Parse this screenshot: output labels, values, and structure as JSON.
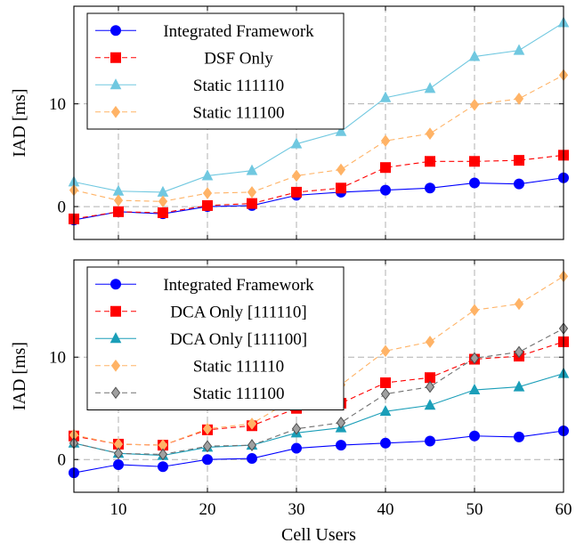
{
  "chart_data": [
    {
      "type": "line",
      "xlabel": "",
      "ylabel": "IAD [ms]",
      "x": [
        5,
        10,
        15,
        20,
        25,
        30,
        35,
        40,
        45,
        50,
        55,
        60
      ],
      "xlim": [
        5,
        60
      ],
      "ylim": [
        -3.2,
        19.5
      ],
      "xticks": [
        10,
        20,
        30,
        40,
        50,
        60
      ],
      "yticks": [
        0,
        10
      ],
      "grid": true,
      "legend_position": "top-left",
      "series": [
        {
          "name": "Integrated Framework",
          "color": "#0000ff",
          "marker": "circle",
          "dashed": false,
          "values": [
            -1.3,
            -0.5,
            -0.7,
            0.0,
            0.1,
            1.1,
            1.4,
            1.6,
            1.8,
            2.3,
            2.2,
            2.8
          ]
        },
        {
          "name": "DSF Only",
          "color": "#ff0000",
          "marker": "square",
          "dashed": true,
          "values": [
            -1.2,
            -0.5,
            -0.6,
            0.1,
            0.3,
            1.4,
            1.8,
            3.8,
            4.4,
            4.4,
            4.5,
            5.0
          ]
        },
        {
          "name": "Static 111110",
          "color": "#70c8e0",
          "marker": "triangle",
          "dashed": false,
          "values": [
            2.4,
            1.5,
            1.4,
            3.0,
            3.5,
            6.1,
            7.3,
            10.6,
            11.5,
            14.6,
            15.2,
            17.9
          ]
        },
        {
          "name": "Static 111100",
          "color": "#ffb366",
          "marker": "diamond",
          "dashed": true,
          "values": [
            1.6,
            0.6,
            0.5,
            1.3,
            1.4,
            3.0,
            3.6,
            6.4,
            7.1,
            9.9,
            10.5,
            12.8
          ]
        }
      ]
    },
    {
      "type": "line",
      "xlabel": "Cell Users",
      "ylabel": "IAD [ms]",
      "x": [
        5,
        10,
        15,
        20,
        25,
        30,
        35,
        40,
        45,
        50,
        55,
        60
      ],
      "xlim": [
        5,
        60
      ],
      "ylim": [
        -3.2,
        19.5
      ],
      "xticks": [
        10,
        20,
        30,
        40,
        50,
        60
      ],
      "yticks": [
        0,
        10
      ],
      "grid": true,
      "legend_position": "top-left",
      "series": [
        {
          "name": "Integrated Framework",
          "color": "#0000ff",
          "marker": "circle",
          "dashed": false,
          "values": [
            -1.3,
            -0.5,
            -0.7,
            0.0,
            0.1,
            1.1,
            1.4,
            1.6,
            1.8,
            2.3,
            2.2,
            2.8
          ]
        },
        {
          "name": "DCA Only [111110]",
          "color": "#ff0000",
          "marker": "square",
          "dashed": true,
          "values": [
            2.3,
            1.5,
            1.4,
            2.9,
            3.3,
            5.0,
            5.5,
            7.5,
            8.0,
            9.8,
            10.1,
            11.5
          ]
        },
        {
          "name": "DCA Only [111100]",
          "color": "#1a9eb8",
          "marker": "triangle",
          "dashed": false,
          "values": [
            1.6,
            0.6,
            0.4,
            1.2,
            1.4,
            2.6,
            3.1,
            4.7,
            5.3,
            6.8,
            7.1,
            8.4
          ]
        },
        {
          "name": "Static 111110",
          "color": "#ffb366",
          "marker": "diamond",
          "dashed": true,
          "values": [
            2.4,
            1.5,
            1.4,
            3.0,
            3.5,
            6.1,
            7.3,
            10.6,
            11.5,
            14.6,
            15.2,
            17.9
          ]
        },
        {
          "name": "Static 111100",
          "color": "#888888",
          "marker": "diamond",
          "dashed": true,
          "values": [
            1.6,
            0.6,
            0.5,
            1.3,
            1.4,
            3.0,
            3.6,
            6.4,
            7.1,
            9.9,
            10.5,
            12.8
          ]
        }
      ]
    }
  ]
}
